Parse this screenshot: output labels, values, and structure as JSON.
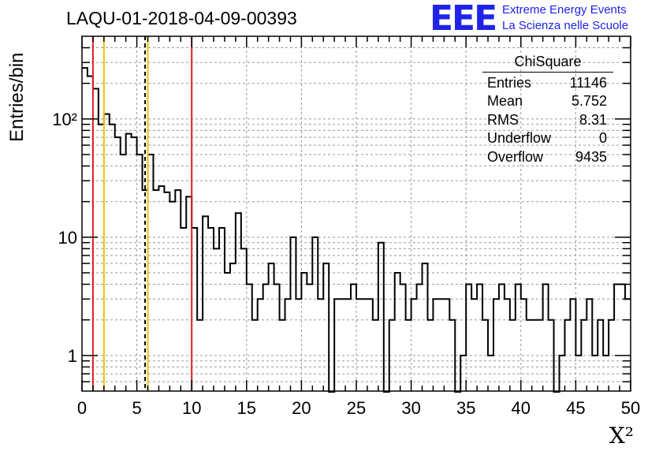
{
  "title": "LAQU-01-2018-04-09-00393",
  "logo": {
    "letters": "EEE",
    "line1": "Extreme Energy Events",
    "line2": "La Scienza nelle Scuole",
    "color": "#1f24e6"
  },
  "stats": {
    "title": "ChiSquare",
    "rows": [
      {
        "label": "Entries",
        "value": "11146"
      },
      {
        "label": "Mean",
        "value": "5.752"
      },
      {
        "label": "RMS",
        "value": "8.31"
      },
      {
        "label": "Underflow",
        "value": "0"
      },
      {
        "label": "Overflow",
        "value": "9435"
      }
    ]
  },
  "chart_data": {
    "type": "histogram",
    "title": "LAQU-01-2018-04-09-00393",
    "xlabel": "X²",
    "ylabel": "Entries/bin",
    "xlim": [
      0,
      50
    ],
    "ylim": [
      0.5,
      500
    ],
    "log_y": true,
    "grid": true,
    "bin_width": 0.5,
    "x_ticks": [
      "0",
      "5",
      "10",
      "15",
      "20",
      "25",
      "30",
      "35",
      "40",
      "45",
      "50"
    ],
    "y_ticks": [
      "1",
      "10",
      "10²"
    ],
    "values": [
      270,
      230,
      180,
      90,
      110,
      90,
      70,
      50,
      75,
      70,
      50,
      25,
      50,
      25,
      27,
      24,
      20,
      25,
      12,
      22,
      12,
      2,
      15,
      12,
      8,
      12,
      5,
      6,
      16,
      8,
      4,
      2,
      3,
      4,
      6,
      4,
      2,
      3,
      10,
      3,
      5,
      4,
      10,
      3,
      6,
      0,
      3,
      3,
      3,
      4,
      3,
      3,
      3,
      2,
      9,
      0,
      2,
      5,
      4,
      2,
      3,
      4,
      6,
      2,
      3,
      3,
      3,
      2,
      0,
      1,
      4,
      3,
      4,
      2,
      1,
      3,
      4,
      3,
      2,
      4,
      3,
      2,
      2,
      2,
      4,
      2,
      0,
      1,
      2,
      3,
      1,
      2,
      3,
      1,
      2,
      1,
      2,
      4,
      4,
      3
    ],
    "vertical_lines": [
      {
        "x": 1.0,
        "color": "#dd1f1f",
        "style": "solid"
      },
      {
        "x": 2.0,
        "color": "#f0c000",
        "style": "solid"
      },
      {
        "x": 5.752,
        "color": "#000000",
        "style": "dashed"
      },
      {
        "x": 6.0,
        "color": "#f0c000",
        "style": "solid"
      },
      {
        "x": 10.0,
        "color": "#dd1f1f",
        "style": "solid"
      }
    ]
  }
}
